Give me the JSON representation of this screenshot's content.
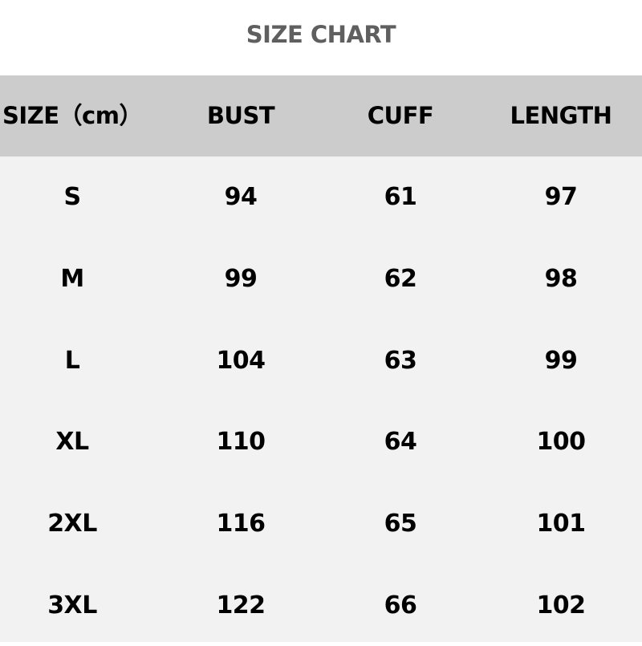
{
  "title": "SIZE CHART",
  "columns": [
    "SIZE（cm）",
    "BUST",
    "CUFF",
    "LENGTH"
  ],
  "rows": [
    [
      "S",
      "94",
      "61",
      "97"
    ],
    [
      "M",
      "99",
      "62",
      "98"
    ],
    [
      "L",
      "104",
      "63",
      "99"
    ],
    [
      "XL",
      "110",
      "64",
      "100"
    ],
    [
      "2XL",
      "116",
      "65",
      "101"
    ],
    [
      "3XL",
      "122",
      "66",
      "102"
    ]
  ],
  "colors": {
    "title": "#5f5f5f",
    "header_bg": "#cccccc",
    "body_bg": "#f2f2f2",
    "text": "#000000"
  }
}
